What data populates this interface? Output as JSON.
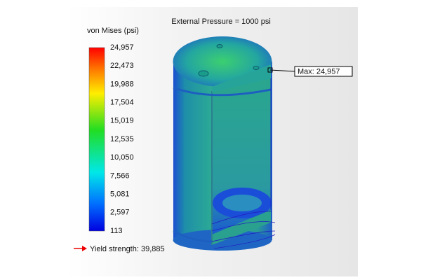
{
  "header": {
    "title": "External Pressure = 1000 psi"
  },
  "legend": {
    "title": "von Mises (psi)",
    "labels": [
      "24,957",
      "22,473",
      "19,988",
      "17,504",
      "15,019",
      "12,535",
      "10,050",
      "7,566",
      "5,081",
      "2,597",
      "113"
    ]
  },
  "yield_strength": "Yield strength: 39,885",
  "max_label": "Max: 24,957"
}
